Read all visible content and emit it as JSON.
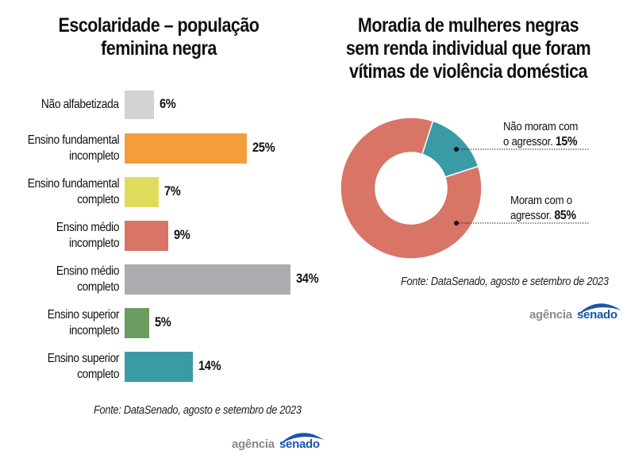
{
  "chart_data": [
    {
      "type": "bar",
      "orientation": "horizontal",
      "title": "Escolaridade – população feminina negra",
      "categories": [
        "Não alfabetizada",
        "Ensino fundamental incompleto",
        "Ensino fundamental completo",
        "Ensino médio incompleto",
        "Ensino médio completo",
        "Ensino superior incompleto",
        "Ensino superior completo"
      ],
      "category_lines": [
        [
          "Não alfabetizada"
        ],
        [
          "Ensino fundamental",
          "incompleto"
        ],
        [
          "Ensino fundamental",
          "completo"
        ],
        [
          "Ensino médio",
          "incompleto"
        ],
        [
          "Ensino médio",
          "completo"
        ],
        [
          "Ensino superior",
          "incompleto"
        ],
        [
          "Ensino superior",
          "completo"
        ]
      ],
      "values": [
        6,
        25,
        7,
        9,
        34,
        5,
        14
      ],
      "value_labels": [
        "6%",
        "25%",
        "7%",
        "9%",
        "34%",
        "5%",
        "14%"
      ],
      "colors": [
        "#d2d3d5",
        "#f49d3d",
        "#dfdc5c",
        "#d87566",
        "#acadb0",
        "#6b9d62",
        "#3a9aa6"
      ],
      "unit": "%",
      "xlabel": "",
      "ylabel": "",
      "grid": false,
      "source": "Fonte: DataSenado, agosto e setembro de 2023"
    },
    {
      "type": "pie",
      "donut": true,
      "title": "Moradia de mulheres negras sem renda individual que foram vítimas de violência doméstica",
      "title_lines": [
        "Moradia de mulheres negras",
        "sem renda individual que foram",
        "vítimas de violência doméstica"
      ],
      "slices": [
        {
          "label": "Não moram com o agressor.",
          "label_lines": [
            "Não moram com",
            "o agressor."
          ],
          "value": 15,
          "value_label": "15%",
          "color": "#3a9aa6"
        },
        {
          "label": "Moram com o agressor.",
          "label_lines": [
            "Moram com o",
            "agressor."
          ],
          "value": 85,
          "value_label": "85%",
          "color": "#d87566"
        }
      ],
      "unit": "%",
      "source": "Fonte: DataSenado, agosto e setembro de 2023"
    }
  ],
  "logo": {
    "part1": "agência",
    "part2": "senado"
  }
}
